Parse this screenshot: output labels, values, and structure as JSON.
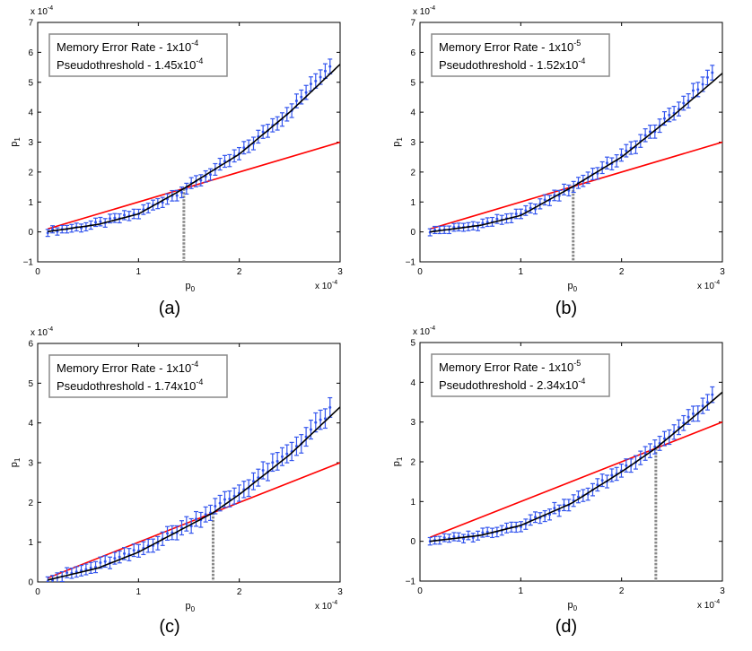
{
  "chart_data": [
    {
      "type": "line",
      "panel_label": "(a)",
      "xlabel": "p",
      "xlabel_sub": "0",
      "ylabel": "p",
      "ylabel_sub": "1",
      "xlim": [
        0,
        3
      ],
      "ylim": [
        -1,
        7
      ],
      "xticks": [
        "0",
        "1",
        "2",
        "3"
      ],
      "yticks": [
        "−1",
        "0",
        "1",
        "2",
        "3",
        "4",
        "5",
        "6",
        "7"
      ],
      "x_scale_label": "x 10",
      "x_scale_exp": "-4",
      "y_scale_label": "x 10",
      "y_scale_exp": "-4",
      "legend": {
        "line1": "Memory Error Rate - 1x10",
        "line1_exp": "-4",
        "line2": "Pseudothreshold - 1.45x10",
        "line2_exp": "-4"
      },
      "threshold_x": 1.45,
      "memory_error_rate": 0.0001,
      "series": [
        {
          "name": "p1 = p0 reference",
          "color": "#ff0000",
          "x": [
            0.1,
            3.0
          ],
          "y": [
            0.1,
            3.0
          ]
        },
        {
          "name": "fit",
          "color": "#000000",
          "x": [
            0.1,
            0.6,
            1.0,
            1.45,
            2.0,
            2.5,
            3.0
          ],
          "y": [
            0.01,
            0.25,
            0.6,
            1.45,
            2.6,
            4.0,
            5.6
          ]
        },
        {
          "name": "simulation",
          "color": "#3355ee",
          "x": [
            0.1,
            0.5,
            1.0,
            1.5,
            2.0,
            2.5,
            2.9
          ],
          "y": [
            0.02,
            0.2,
            0.62,
            1.5,
            2.6,
            4.05,
            5.6
          ],
          "error": 0.25
        }
      ]
    },
    {
      "type": "line",
      "panel_label": "(b)",
      "xlabel": "p",
      "xlabel_sub": "0",
      "ylabel": "p",
      "ylabel_sub": "1",
      "xlim": [
        0,
        3
      ],
      "ylim": [
        -1,
        7
      ],
      "xticks": [
        "0",
        "1",
        "2",
        "3"
      ],
      "yticks": [
        "−1",
        "0",
        "1",
        "2",
        "3",
        "4",
        "5",
        "6",
        "7"
      ],
      "x_scale_label": "x 10",
      "x_scale_exp": "-4",
      "y_scale_label": "x 10",
      "y_scale_exp": "-4",
      "legend": {
        "line1": "Memory Error Rate - 1x10",
        "line1_exp": "-5",
        "line2": "Pseudothreshold - 1.52x10",
        "line2_exp": "-4"
      },
      "threshold_x": 1.52,
      "memory_error_rate": 1e-05,
      "series": [
        {
          "name": "p1 = p0 reference",
          "color": "#ff0000",
          "x": [
            0.1,
            3.0
          ],
          "y": [
            0.1,
            3.0
          ]
        },
        {
          "name": "fit",
          "color": "#000000",
          "x": [
            0.1,
            0.6,
            1.0,
            1.52,
            2.0,
            2.5,
            3.0
          ],
          "y": [
            0.0,
            0.22,
            0.55,
            1.52,
            2.5,
            3.85,
            5.3
          ]
        },
        {
          "name": "simulation",
          "color": "#3355ee",
          "x": [
            0.1,
            0.5,
            1.0,
            1.5,
            2.0,
            2.5,
            2.9
          ],
          "y": [
            0.02,
            0.18,
            0.57,
            1.48,
            2.52,
            3.9,
            5.3
          ],
          "error": 0.25
        }
      ]
    },
    {
      "type": "line",
      "panel_label": "(c)",
      "xlabel": "p",
      "xlabel_sub": "0",
      "ylabel": "p",
      "ylabel_sub": "1",
      "xlim": [
        0,
        3
      ],
      "ylim": [
        0,
        6
      ],
      "xticks": [
        "0",
        "1",
        "2",
        "3"
      ],
      "yticks": [
        "0",
        "1",
        "2",
        "3",
        "4",
        "5",
        "6"
      ],
      "x_scale_label": "x 10",
      "x_scale_exp": "-4",
      "y_scale_label": "x 10",
      "y_scale_exp": "-4",
      "legend": {
        "line1": "Memory Error Rate - 1x10",
        "line1_exp": "-4",
        "line2": "Pseudothreshold - 1.74x10",
        "line2_exp": "-4"
      },
      "threshold_x": 1.74,
      "memory_error_rate": 0.0001,
      "series": [
        {
          "name": "p1 = p0 reference",
          "color": "#ff0000",
          "x": [
            0.1,
            3.0
          ],
          "y": [
            0.1,
            3.0
          ]
        },
        {
          "name": "fit",
          "color": "#000000",
          "x": [
            0.1,
            0.6,
            1.0,
            1.74,
            2.0,
            2.5,
            3.0
          ],
          "y": [
            0.05,
            0.35,
            0.75,
            1.74,
            2.2,
            3.2,
            4.4
          ]
        },
        {
          "name": "simulation",
          "color": "#3355ee",
          "x": [
            0.1,
            0.5,
            1.0,
            1.5,
            2.0,
            2.5,
            2.9
          ],
          "y": [
            0.06,
            0.32,
            0.78,
            1.45,
            2.25,
            3.25,
            4.3
          ],
          "error": 0.25
        }
      ]
    },
    {
      "type": "line",
      "panel_label": "(d)",
      "xlabel": "p",
      "xlabel_sub": "0",
      "ylabel": "p",
      "ylabel_sub": "1",
      "xlim": [
        0,
        3
      ],
      "ylim": [
        -1,
        5
      ],
      "xticks": [
        "0",
        "1",
        "2",
        "3"
      ],
      "yticks": [
        "−1",
        "0",
        "1",
        "2",
        "3",
        "4",
        "5"
      ],
      "x_scale_label": "x 10",
      "x_scale_exp": "-4",
      "y_scale_label": "x 10",
      "y_scale_exp": "-4",
      "legend": {
        "line1": "Memory Error Rate - 1x10",
        "line1_exp": "-5",
        "line2": "Pseudothreshold - 2.34x10",
        "line2_exp": "-4"
      },
      "threshold_x": 2.34,
      "memory_error_rate": 1e-05,
      "series": [
        {
          "name": "p1 = p0 reference",
          "color": "#ff0000",
          "x": [
            0.1,
            3.0
          ],
          "y": [
            0.1,
            3.0
          ]
        },
        {
          "name": "fit",
          "color": "#000000",
          "x": [
            0.1,
            0.6,
            1.0,
            1.5,
            2.0,
            2.34,
            2.7,
            3.0
          ],
          "y": [
            0.0,
            0.15,
            0.4,
            0.95,
            1.75,
            2.34,
            3.1,
            3.75
          ]
        },
        {
          "name": "simulation",
          "color": "#3355ee",
          "x": [
            0.1,
            0.5,
            1.0,
            1.5,
            2.0,
            2.5,
            2.9
          ],
          "y": [
            0.02,
            0.12,
            0.42,
            0.95,
            1.8,
            2.7,
            3.6
          ],
          "error": 0.2
        }
      ]
    }
  ]
}
